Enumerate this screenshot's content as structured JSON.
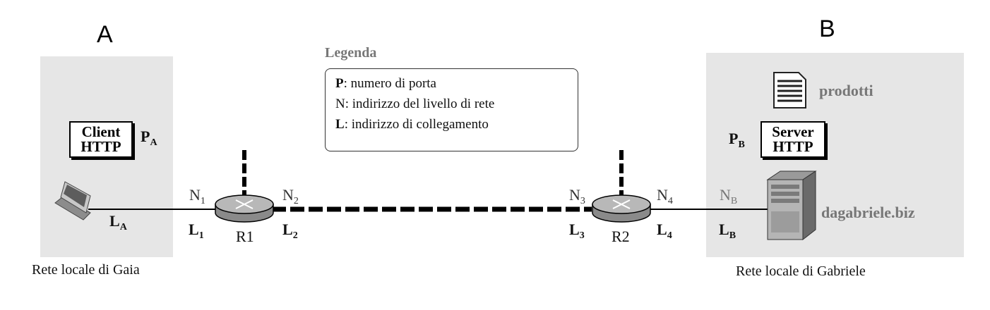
{
  "hosts": {
    "a": {
      "letter": "A",
      "lan_caption": "Rete locale di Gaia",
      "app_line1": "Client",
      "app_line2": "HTTP",
      "port_base": "P",
      "port_sub": "A",
      "link_base": "L",
      "link_sub": "A"
    },
    "b": {
      "letter": "B",
      "lan_caption": "Rete locale di Gabriele",
      "app_line1": "Server",
      "app_line2": "HTTP",
      "port_base": "P",
      "port_sub": "B",
      "net_base": "N",
      "net_sub": "B",
      "link_base": "L",
      "link_sub": "B",
      "file_label": "prodotti",
      "server_name": "dagabriele.biz"
    }
  },
  "routers": {
    "r1": {
      "name": "R1",
      "n_left_base": "N",
      "n_left_sub": "1",
      "n_right_base": "N",
      "n_right_sub": "2",
      "l_left_base": "L",
      "l_left_sub": "1",
      "l_right_base": "L",
      "l_right_sub": "2"
    },
    "r2": {
      "name": "R2",
      "n_left_base": "N",
      "n_left_sub": "3",
      "n_right_base": "N",
      "n_right_sub": "4",
      "l_left_base": "L",
      "l_left_sub": "3",
      "l_right_base": "L",
      "l_right_sub": "4"
    }
  },
  "legend": {
    "title": "Legenda",
    "rows": [
      {
        "key": "P",
        "text": ": numero di porta"
      },
      {
        "key": "N",
        "text": ": indirizzo del livello di rete"
      },
      {
        "key": "L",
        "text": ": indirizzo di collegamento"
      }
    ]
  },
  "colors": {
    "panel": "#e6e6e6",
    "router_fill": "#b8b8b8",
    "line": "#000000"
  }
}
